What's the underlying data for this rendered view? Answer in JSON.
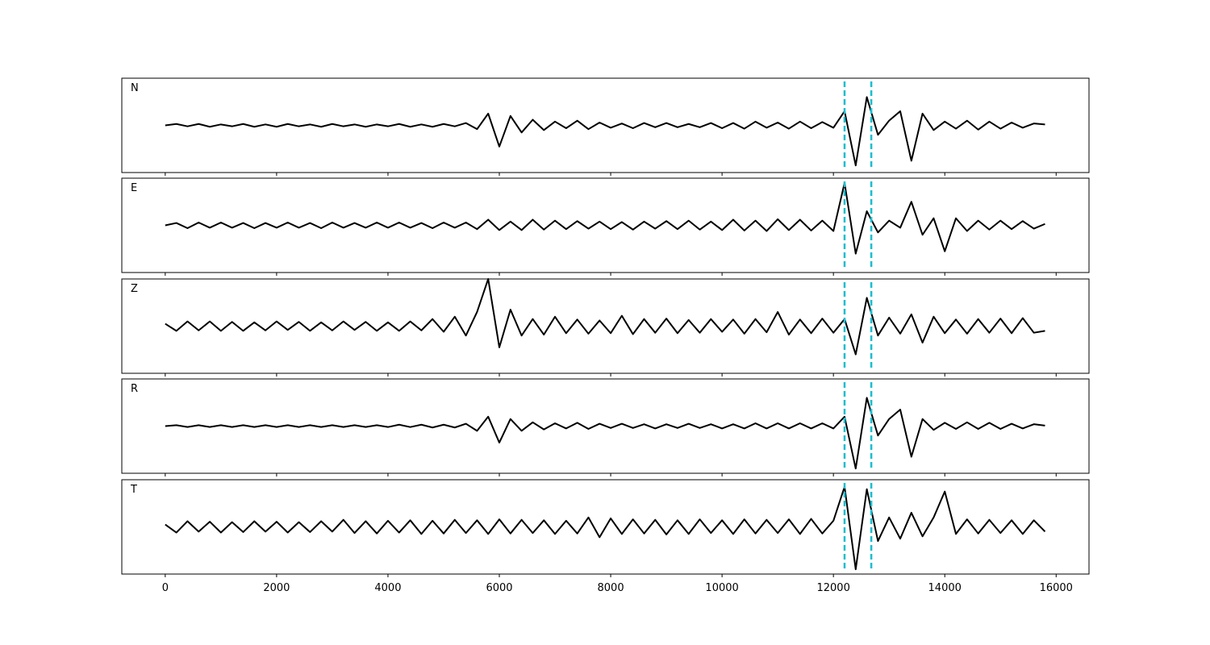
{
  "chart_data": [
    {
      "type": "line",
      "title": "N",
      "x": [
        0,
        200,
        400,
        600,
        800,
        1000,
        1200,
        1400,
        1600,
        1800,
        2000,
        2200,
        2400,
        2600,
        2800,
        3000,
        3200,
        3400,
        3600,
        3800,
        4000,
        4200,
        4400,
        4600,
        4800,
        5000,
        5200,
        5400,
        5600,
        5800,
        6000,
        6200,
        6400,
        6600,
        6800,
        7000,
        7200,
        7400,
        7600,
        7800,
        8000,
        8200,
        8400,
        8600,
        8800,
        9000,
        9200,
        9400,
        9600,
        9800,
        10000,
        10200,
        10400,
        10600,
        10800,
        11000,
        11200,
        11400,
        11600,
        11800,
        12000,
        12200,
        12400,
        12600,
        12800,
        13000,
        13200,
        13400,
        13600,
        13800,
        14000,
        14200,
        14400,
        14600,
        14800,
        15000,
        15200,
        15400,
        15600,
        15800
      ],
      "series": [
        {
          "color": "#000000",
          "values": [
            0,
            0.03,
            -0.02,
            0.03,
            -0.03,
            0.02,
            -0.02,
            0.03,
            -0.03,
            0.02,
            -0.03,
            0.03,
            -0.02,
            0.02,
            -0.03,
            0.03,
            -0.02,
            0.02,
            -0.03,
            0.02,
            -0.02,
            0.03,
            -0.03,
            0.02,
            -0.03,
            0.03,
            -0.02,
            0.05,
            -0.08,
            0.25,
            -0.45,
            0.2,
            -0.15,
            0.12,
            -0.1,
            0.08,
            -0.06,
            0.1,
            -0.08,
            0.06,
            -0.05,
            0.04,
            -0.06,
            0.05,
            -0.04,
            0.05,
            -0.04,
            0.03,
            -0.04,
            0.05,
            -0.06,
            0.05,
            -0.07,
            0.08,
            -0.05,
            0.06,
            -0.07,
            0.08,
            -0.06,
            0.07,
            -0.05,
            0.3,
            -0.85,
            0.6,
            -0.2,
            0.1,
            0.3,
            -0.75,
            0.25,
            -0.1,
            0.08,
            -0.07,
            0.1,
            -0.09,
            0.08,
            -0.07,
            0.06,
            -0.05,
            0.04,
            0.02
          ]
        }
      ],
      "xlim": [
        -780,
        16590
      ],
      "ylim": [
        -1,
        1
      ],
      "xticks": [
        0,
        2000,
        4000,
        6000,
        8000,
        10000,
        12000,
        14000,
        16000
      ],
      "xtick_labels": false,
      "vlines": {
        "color": "#17becf",
        "values": [
          12200,
          12680
        ]
      }
    },
    {
      "type": "line",
      "title": "E",
      "x": [
        0,
        200,
        400,
        600,
        800,
        1000,
        1200,
        1400,
        1600,
        1800,
        2000,
        2200,
        2400,
        2600,
        2800,
        3000,
        3200,
        3400,
        3600,
        3800,
        4000,
        4200,
        4400,
        4600,
        4800,
        5000,
        5200,
        5400,
        5600,
        5800,
        6000,
        6200,
        6400,
        6600,
        6800,
        7000,
        7200,
        7400,
        7600,
        7800,
        8000,
        8200,
        8400,
        8600,
        8800,
        9000,
        9200,
        9400,
        9600,
        9800,
        10000,
        10200,
        10400,
        10600,
        10800,
        11000,
        11200,
        11400,
        11600,
        11800,
        12000,
        12200,
        12400,
        12600,
        12800,
        13000,
        13200,
        13400,
        13600,
        13800,
        14000,
        14200,
        14400,
        14600,
        14800,
        15000,
        15200,
        15400,
        15600,
        15800
      ],
      "series": [
        {
          "color": "#000000",
          "values": [
            0,
            0.05,
            -0.06,
            0.06,
            -0.05,
            0.06,
            -0.05,
            0.05,
            -0.06,
            0.05,
            -0.05,
            0.06,
            -0.05,
            0.05,
            -0.06,
            0.06,
            -0.05,
            0.05,
            -0.05,
            0.06,
            -0.05,
            0.06,
            -0.05,
            0.05,
            -0.06,
            0.06,
            -0.05,
            0.06,
            -0.08,
            0.12,
            -0.1,
            0.08,
            -0.1,
            0.12,
            -0.09,
            0.1,
            -0.08,
            0.09,
            -0.07,
            0.08,
            -0.08,
            0.07,
            -0.09,
            0.08,
            -0.07,
            0.09,
            -0.08,
            0.1,
            -0.09,
            0.08,
            -0.1,
            0.12,
            -0.11,
            0.1,
            -0.12,
            0.13,
            -0.1,
            0.12,
            -0.11,
            0.1,
            -0.12,
            0.9,
            -0.6,
            0.3,
            -0.15,
            0.1,
            -0.05,
            0.5,
            -0.2,
            0.15,
            -0.55,
            0.15,
            -0.12,
            0.1,
            -0.09,
            0.1,
            -0.08,
            0.09,
            -0.07,
            0.03
          ]
        }
      ],
      "xlim": [
        -780,
        16590
      ],
      "ylim": [
        -1,
        1
      ],
      "xticks": [
        0,
        2000,
        4000,
        6000,
        8000,
        10000,
        12000,
        14000,
        16000
      ],
      "xtick_labels": false,
      "vlines": {
        "color": "#17becf",
        "values": [
          12200,
          12680
        ]
      }
    },
    {
      "type": "line",
      "title": "Z",
      "x": [
        0,
        200,
        400,
        600,
        800,
        1000,
        1200,
        1400,
        1600,
        1800,
        2000,
        2200,
        2400,
        2600,
        2800,
        3000,
        3200,
        3400,
        3600,
        3800,
        4000,
        4200,
        4400,
        4600,
        4800,
        5000,
        5200,
        5400,
        5600,
        5800,
        6000,
        6200,
        6400,
        6600,
        6800,
        7000,
        7200,
        7400,
        7600,
        7800,
        8000,
        8200,
        8400,
        8600,
        8800,
        9000,
        9200,
        9400,
        9600,
        9800,
        10000,
        10200,
        10400,
        10600,
        10800,
        11000,
        11200,
        11400,
        11600,
        11800,
        12000,
        12200,
        12400,
        12600,
        12800,
        13000,
        13200,
        13400,
        13600,
        13800,
        14000,
        14200,
        14400,
        14600,
        14800,
        15000,
        15200,
        15400,
        15600,
        15800
      ],
      "series": [
        {
          "color": "#000000",
          "values": [
            0.05,
            -0.1,
            0.1,
            -0.09,
            0.1,
            -0.1,
            0.09,
            -0.1,
            0.08,
            -0.09,
            0.1,
            -0.08,
            0.09,
            -0.1,
            0.08,
            -0.09,
            0.1,
            -0.08,
            0.09,
            -0.1,
            0.08,
            -0.1,
            0.1,
            -0.09,
            0.15,
            -0.12,
            0.2,
            -0.2,
            0.3,
            1.0,
            -0.45,
            0.35,
            -0.2,
            0.15,
            -0.18,
            0.2,
            -0.15,
            0.14,
            -0.16,
            0.12,
            -0.15,
            0.22,
            -0.17,
            0.15,
            -0.14,
            0.16,
            -0.15,
            0.13,
            -0.14,
            0.15,
            -0.12,
            0.14,
            -0.16,
            0.15,
            -0.13,
            0.3,
            -0.18,
            0.14,
            -0.15,
            0.16,
            -0.14,
            0.15,
            -0.6,
            0.6,
            -0.2,
            0.18,
            -0.16,
            0.25,
            -0.35,
            0.2,
            -0.15,
            0.14,
            -0.16,
            0.15,
            -0.14,
            0.16,
            -0.15,
            0.17,
            -0.14,
            -0.1
          ]
        }
      ],
      "xlim": [
        -780,
        16590
      ],
      "ylim": [
        -1,
        1
      ],
      "xticks": [
        0,
        2000,
        4000,
        6000,
        8000,
        10000,
        12000,
        14000,
        16000
      ],
      "xtick_labels": false,
      "vlines": {
        "color": "#17becf",
        "values": [
          12200,
          12680
        ]
      }
    },
    {
      "type": "line",
      "title": "R",
      "x": [
        0,
        200,
        400,
        600,
        800,
        1000,
        1200,
        1400,
        1600,
        1800,
        2000,
        2200,
        2400,
        2600,
        2800,
        3000,
        3200,
        3400,
        3600,
        3800,
        4000,
        4200,
        4400,
        4600,
        4800,
        5000,
        5200,
        5400,
        5600,
        5800,
        6000,
        6200,
        6400,
        6600,
        6800,
        7000,
        7200,
        7400,
        7600,
        7800,
        8000,
        8200,
        8400,
        8600,
        8800,
        9000,
        9200,
        9400,
        9600,
        9800,
        10000,
        10200,
        10400,
        10600,
        10800,
        11000,
        11200,
        11400,
        11600,
        11800,
        12000,
        12200,
        12400,
        12600,
        12800,
        13000,
        13200,
        13400,
        13600,
        13800,
        14000,
        14200,
        14400,
        14600,
        14800,
        15000,
        15200,
        15400,
        15600,
        15800
      ],
      "series": [
        {
          "color": "#000000",
          "values": [
            0,
            0.02,
            -0.02,
            0.02,
            -0.02,
            0.02,
            -0.02,
            0.02,
            -0.02,
            0.02,
            -0.02,
            0.02,
            -0.02,
            0.02,
            -0.02,
            0.02,
            -0.02,
            0.02,
            -0.02,
            0.02,
            -0.02,
            0.03,
            -0.02,
            0.03,
            -0.03,
            0.03,
            -0.03,
            0.05,
            -0.1,
            0.2,
            -0.35,
            0.15,
            -0.1,
            0.08,
            -0.07,
            0.06,
            -0.05,
            0.07,
            -0.06,
            0.05,
            -0.04,
            0.05,
            -0.04,
            0.04,
            -0.05,
            0.04,
            -0.04,
            0.05,
            -0.04,
            0.04,
            -0.05,
            0.04,
            -0.05,
            0.06,
            -0.05,
            0.06,
            -0.05,
            0.06,
            -0.05,
            0.06,
            -0.05,
            0.2,
            -0.9,
            0.6,
            -0.2,
            0.15,
            0.35,
            -0.65,
            0.15,
            -0.08,
            0.07,
            -0.06,
            0.08,
            -0.06,
            0.07,
            -0.06,
            0.05,
            -0.05,
            0.04,
            0.01
          ]
        }
      ],
      "xlim": [
        -780,
        16590
      ],
      "ylim": [
        -1,
        1
      ],
      "xticks": [
        0,
        2000,
        4000,
        6000,
        8000,
        10000,
        12000,
        14000,
        16000
      ],
      "xtick_labels": false,
      "vlines": {
        "color": "#17becf",
        "values": [
          12200,
          12680
        ]
      }
    },
    {
      "type": "line",
      "title": "T",
      "x": [
        0,
        200,
        400,
        600,
        800,
        1000,
        1200,
        1400,
        1600,
        1800,
        2000,
        2200,
        2400,
        2600,
        2800,
        3000,
        3200,
        3400,
        3600,
        3800,
        4000,
        4200,
        4400,
        4600,
        4800,
        5000,
        5200,
        5400,
        5600,
        5800,
        6000,
        6200,
        6400,
        6600,
        6800,
        7000,
        7200,
        7400,
        7600,
        7800,
        8000,
        8200,
        8400,
        8600,
        8800,
        9000,
        9200,
        9400,
        9600,
        9800,
        10000,
        10200,
        10400,
        10600,
        10800,
        11000,
        11200,
        11400,
        11600,
        11800,
        12000,
        12200,
        12400,
        12600,
        12800,
        13000,
        13200,
        13400,
        13600,
        13800,
        14000,
        14200,
        14400,
        14600,
        14800,
        15000,
        15200,
        15400,
        15600,
        15800
      ],
      "series": [
        {
          "color": "#000000",
          "values": [
            0.05,
            -0.12,
            0.12,
            -0.1,
            0.11,
            -0.12,
            0.1,
            -0.11,
            0.12,
            -0.1,
            0.11,
            -0.12,
            0.1,
            -0.11,
            0.12,
            -0.1,
            0.15,
            -0.13,
            0.12,
            -0.14,
            0.13,
            -0.12,
            0.14,
            -0.15,
            0.13,
            -0.14,
            0.15,
            -0.13,
            0.14,
            -0.15,
            0.16,
            -0.14,
            0.15,
            -0.13,
            0.14,
            -0.15,
            0.13,
            -0.14,
            0.2,
            -0.22,
            0.18,
            -0.15,
            0.16,
            -0.14,
            0.15,
            -0.16,
            0.14,
            -0.15,
            0.16,
            -0.13,
            0.14,
            -0.15,
            0.16,
            -0.14,
            0.15,
            -0.13,
            0.16,
            -0.15,
            0.17,
            -0.14,
            0.13,
            0.85,
            -0.9,
            0.8,
            -0.3,
            0.2,
            -0.25,
            0.3,
            -0.2,
            0.2,
            0.75,
            -0.15,
            0.16,
            -0.14,
            0.15,
            -0.13,
            0.14,
            -0.15,
            0.14,
            -0.1
          ]
        }
      ],
      "xlim": [
        -780,
        16590
      ],
      "ylim": [
        -1,
        1
      ],
      "xticks": [
        0,
        2000,
        4000,
        6000,
        8000,
        10000,
        12000,
        14000,
        16000
      ],
      "xtick_labels": true,
      "vlines": {
        "color": "#17becf",
        "values": [
          12200,
          12680
        ]
      }
    }
  ]
}
